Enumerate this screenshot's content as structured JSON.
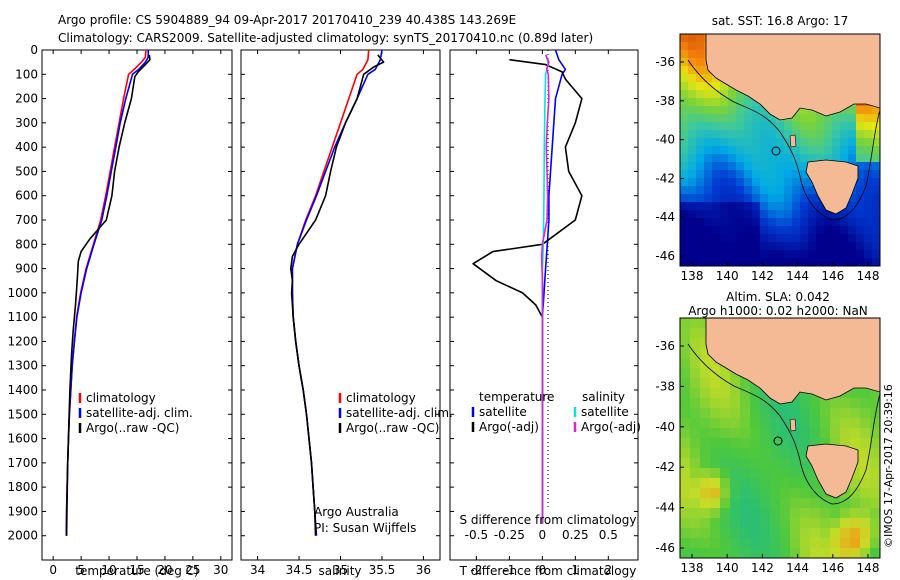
{
  "header": {
    "line1": "Argo profile: CS 5904889_94 09-Apr-2017 20170410_239 40.438S 143.269E",
    "line2": "Climatology: CARS2009. Satellite-adjusted climatology: synTS_20170410.nc (0.89d later)"
  },
  "colors": {
    "climatology": "#ff0000",
    "satellite": "#0000ff",
    "argo": "#000000",
    "sat_salinity": "#00e5e5",
    "argo_salinity": "#e020e0"
  },
  "chart_data": [
    {
      "type": "line",
      "id": "temperature",
      "xlabel": "temperature (deg C)",
      "xlim": [
        -2,
        32
      ],
      "ylim": [
        2100,
        0
      ],
      "xticks": [
        "0",
        "5",
        "10",
        "15",
        "20",
        "25",
        "30"
      ],
      "yticks": [
        "0",
        "100",
        "200",
        "300",
        "400",
        "500",
        "600",
        "700",
        "800",
        "900",
        "1000",
        "1100",
        "1200",
        "1300",
        "1400",
        "1500",
        "1600",
        "1700",
        "1800",
        "1900",
        "2000"
      ],
      "legend_position": "lower-center",
      "legend": [
        "climatology",
        "satellite-adj. clim.",
        "Argo(..raw -QC)"
      ],
      "series": [
        {
          "name": "climatology",
          "color": "#ff0000",
          "points": [
            [
              16.6,
              0
            ],
            [
              16.5,
              30
            ],
            [
              15.8,
              50
            ],
            [
              14.5,
              80
            ],
            [
              13.5,
              100
            ],
            [
              12.6,
              200
            ],
            [
              11.8,
              300
            ],
            [
              11.0,
              400
            ],
            [
              10.2,
              500
            ],
            [
              9.4,
              600
            ],
            [
              8.5,
              700
            ],
            [
              7.2,
              800
            ],
            [
              5.9,
              900
            ],
            [
              4.9,
              1000
            ],
            [
              4.2,
              1100
            ],
            [
              3.8,
              1200
            ],
            [
              3.4,
              1300
            ],
            [
              3.15,
              1400
            ],
            [
              2.9,
              1500
            ],
            [
              2.75,
              1600
            ],
            [
              2.6,
              1700
            ],
            [
              2.5,
              1800
            ],
            [
              2.4,
              1900
            ],
            [
              2.35,
              2000
            ]
          ]
        },
        {
          "name": "satellite-adj. clim.",
          "color": "#0000ff",
          "points": [
            [
              17.0,
              0
            ],
            [
              17.0,
              30
            ],
            [
              16.5,
              50
            ],
            [
              15.3,
              80
            ],
            [
              14.2,
              100
            ],
            [
              13.0,
              200
            ],
            [
              12.0,
              300
            ],
            [
              11.2,
              400
            ],
            [
              10.4,
              500
            ],
            [
              9.6,
              600
            ],
            [
              8.7,
              700
            ],
            [
              7.3,
              800
            ],
            [
              6.0,
              900
            ],
            [
              5.0,
              1000
            ],
            [
              4.25,
              1100
            ],
            [
              3.8,
              1200
            ],
            [
              3.4,
              1300
            ],
            [
              3.15,
              1400
            ],
            [
              2.9,
              1500
            ],
            [
              2.75,
              1600
            ],
            [
              2.6,
              1700
            ],
            [
              2.5,
              1800
            ],
            [
              2.4,
              1900
            ],
            [
              2.35,
              2000
            ]
          ]
        },
        {
          "name": "Argo(..raw -QC)",
          "color": "#000000",
          "points": [
            [
              17.2,
              20
            ],
            [
              17.3,
              40
            ],
            [
              16.5,
              60
            ],
            [
              15.2,
              90
            ],
            [
              14.6,
              110
            ],
            [
              14.0,
              200
            ],
            [
              12.8,
              300
            ],
            [
              11.8,
              400
            ],
            [
              11.0,
              500
            ],
            [
              10.5,
              600
            ],
            [
              9.5,
              700
            ],
            [
              6.5,
              780
            ],
            [
              5.0,
              830
            ],
            [
              4.5,
              870
            ],
            [
              4.3,
              950
            ],
            [
              4.0,
              1050
            ],
            [
              3.6,
              1150
            ],
            [
              3.3,
              1250
            ],
            [
              3.0,
              1400
            ],
            [
              2.8,
              1550
            ],
            [
              2.6,
              1700
            ],
            [
              2.5,
              1850
            ],
            [
              2.4,
              2000
            ]
          ]
        }
      ]
    },
    {
      "type": "line",
      "id": "salinity",
      "xlabel": "salinity",
      "xlim": [
        33.8,
        36.2
      ],
      "ylim": [
        2100,
        0
      ],
      "xticks": [
        "34",
        "34.5",
        "35",
        "35.5",
        "36"
      ],
      "legend_position": "lower-center",
      "legend": [
        "climatology",
        "satellite-adj. clim.",
        "Argo(..raw -QC)"
      ],
      "annotation": [
        "Argo Australia",
        "PI: Susan Wijffels"
      ],
      "series": [
        {
          "name": "climatology",
          "color": "#ff0000",
          "points": [
            [
              35.34,
              0
            ],
            [
              35.33,
              40
            ],
            [
              35.27,
              80
            ],
            [
              35.2,
              100
            ],
            [
              35.1,
              200
            ],
            [
              35.0,
              300
            ],
            [
              34.9,
              400
            ],
            [
              34.8,
              500
            ],
            [
              34.7,
              600
            ],
            [
              34.58,
              700
            ],
            [
              34.48,
              800
            ],
            [
              34.42,
              900
            ],
            [
              34.42,
              1000
            ],
            [
              34.43,
              1100
            ],
            [
              34.46,
              1200
            ],
            [
              34.5,
              1300
            ],
            [
              34.55,
              1400
            ],
            [
              34.59,
              1500
            ],
            [
              34.62,
              1600
            ],
            [
              34.65,
              1700
            ],
            [
              34.67,
              1800
            ],
            [
              34.69,
              1900
            ],
            [
              34.7,
              2000
            ]
          ]
        },
        {
          "name": "satellite-adj. clim.",
          "color": "#0000ff",
          "points": [
            [
              35.5,
              0
            ],
            [
              35.48,
              40
            ],
            [
              35.42,
              80
            ],
            [
              35.33,
              100
            ],
            [
              35.2,
              200
            ],
            [
              35.06,
              300
            ],
            [
              34.93,
              400
            ],
            [
              34.82,
              500
            ],
            [
              34.71,
              600
            ],
            [
              34.59,
              700
            ],
            [
              34.48,
              800
            ],
            [
              34.42,
              900
            ],
            [
              34.42,
              1000
            ],
            [
              34.43,
              1100
            ],
            [
              34.46,
              1200
            ],
            [
              34.5,
              1300
            ],
            [
              34.55,
              1400
            ],
            [
              34.59,
              1500
            ],
            [
              34.62,
              1600
            ],
            [
              34.65,
              1700
            ],
            [
              34.67,
              1800
            ],
            [
              34.69,
              1900
            ],
            [
              34.71,
              2000
            ]
          ]
        },
        {
          "name": "Argo(..raw -QC)",
          "color": "#000000",
          "points": [
            [
              35.45,
              20
            ],
            [
              35.52,
              50
            ],
            [
              35.4,
              70
            ],
            [
              35.28,
              100
            ],
            [
              35.2,
              200
            ],
            [
              35.06,
              300
            ],
            [
              34.95,
              400
            ],
            [
              34.88,
              500
            ],
            [
              34.82,
              600
            ],
            [
              34.7,
              700
            ],
            [
              34.5,
              800
            ],
            [
              34.42,
              850
            ],
            [
              34.4,
              900
            ],
            [
              34.42,
              950
            ],
            [
              34.41,
              1000
            ],
            [
              34.43,
              1100
            ],
            [
              34.46,
              1200
            ],
            [
              34.5,
              1300
            ],
            [
              34.55,
              1400
            ],
            [
              34.59,
              1500
            ],
            [
              34.62,
              1600
            ],
            [
              34.65,
              1700
            ],
            [
              34.67,
              1800
            ],
            [
              34.69,
              1900
            ],
            [
              34.7,
              2000
            ]
          ]
        }
      ]
    },
    {
      "type": "line",
      "id": "difference",
      "xlabel": "T difference from climatology",
      "xlabel2": "S difference from climatology",
      "xlim": [
        -2.8,
        2.9
      ],
      "ylim": [
        2100,
        0
      ],
      "xticks": [
        "-2",
        "-1",
        "0",
        "1",
        "2"
      ],
      "xticks_s": [
        "-0.5",
        "-0.25",
        "0",
        "0.25",
        "0.5"
      ],
      "legend_position": "lower",
      "legend_temp_title": "temperature",
      "legend_sal_title": "salinity",
      "legend_temp": [
        "satellite",
        "Argo(-adj)"
      ],
      "legend_sal": [
        "satellite",
        "Argo(-adj)"
      ],
      "series": [
        {
          "name": "temperature satellite",
          "color": "#0000ff",
          "points": [
            [
              0.4,
              0
            ],
            [
              0.5,
              40
            ],
            [
              0.7,
              80
            ],
            [
              0.6,
              100
            ],
            [
              0.4,
              200
            ],
            [
              0.3,
              400
            ],
            [
              0.2,
              600
            ],
            [
              0.2,
              700
            ],
            [
              0.15,
              800
            ],
            [
              0.1,
              900
            ],
            [
              0.05,
              1000
            ],
            [
              0.0,
              1100
            ],
            [
              0.0,
              1300
            ],
            [
              0.0,
              1500
            ],
            [
              0.0,
              1800
            ],
            [
              0.0,
              1950
            ]
          ]
        },
        {
          "name": "temperature Argo(-adj)",
          "color": "#000000",
          "points": [
            [
              -1.0,
              40
            ],
            [
              0.1,
              60
            ],
            [
              0.6,
              90
            ],
            [
              0.7,
              120
            ],
            [
              1.2,
              200
            ],
            [
              1.0,
              300
            ],
            [
              0.7,
              400
            ],
            [
              0.8,
              500
            ],
            [
              1.2,
              600
            ],
            [
              1.0,
              700
            ],
            [
              0.0,
              800
            ],
            [
              -1.5,
              830
            ],
            [
              -2.1,
              880
            ],
            [
              -1.4,
              950
            ],
            [
              -0.6,
              1000
            ],
            [
              -0.2,
              1050
            ],
            [
              0.0,
              1100
            ],
            [
              0.0,
              1300
            ],
            [
              0.0,
              1500
            ],
            [
              0.0,
              1800
            ],
            [
              0.0,
              1950
            ]
          ]
        },
        {
          "name": "salinity satellite",
          "color": "#00e5e5",
          "points": [
            [
              0.12,
              20
            ],
            [
              0.18,
              60
            ],
            [
              0.1,
              100
            ],
            [
              0.08,
              200
            ],
            [
              0.06,
              400
            ],
            [
              0.05,
              600
            ],
            [
              0.03,
              800
            ],
            [
              0.0,
              900
            ],
            [
              0.0,
              1000
            ],
            [
              0.0,
              1200
            ],
            [
              0.0,
              1500
            ],
            [
              0.0,
              1800
            ],
            [
              0.0,
              1950
            ]
          ]
        },
        {
          "name": "salinity Argo(-adj)",
          "color": "#e020e0",
          "points": [
            [
              0.1,
              20
            ],
            [
              0.2,
              50
            ],
            [
              0.13,
              80
            ],
            [
              0.18,
              100
            ],
            [
              0.2,
              200
            ],
            [
              0.15,
              300
            ],
            [
              0.12,
              400
            ],
            [
              0.14,
              500
            ],
            [
              0.16,
              600
            ],
            [
              0.14,
              700
            ],
            [
              0.0,
              800
            ],
            [
              -0.02,
              850
            ],
            [
              -0.01,
              900
            ],
            [
              0.0,
              950
            ],
            [
              0.0,
              1050
            ],
            [
              0.0,
              1300
            ],
            [
              0.0,
              1500
            ],
            [
              0.0,
              1800
            ],
            [
              0.0,
              1950
            ]
          ]
        }
      ]
    },
    {
      "type": "heatmap",
      "id": "sst_map",
      "title": "sat. SST: 16.8 Argo: 17",
      "xticks": [
        "138",
        "140",
        "142",
        "144",
        "146",
        "148"
      ],
      "yticks": [
        "-36",
        "-38",
        "-40",
        "-42",
        "-44",
        "-46"
      ]
    },
    {
      "type": "heatmap",
      "id": "sla_map",
      "title_line1": "Altim. SLA: 0.042",
      "title_line2": "Argo h1000: 0.02 h2000: NaN",
      "xticks": [
        "138",
        "140",
        "142",
        "144",
        "146",
        "148"
      ],
      "yticks": [
        "-36",
        "-38",
        "-40",
        "-42",
        "-44",
        "-46"
      ]
    }
  ],
  "footer": {
    "stamp": "©IMOS 17-Apr-2017 20:39:16"
  }
}
